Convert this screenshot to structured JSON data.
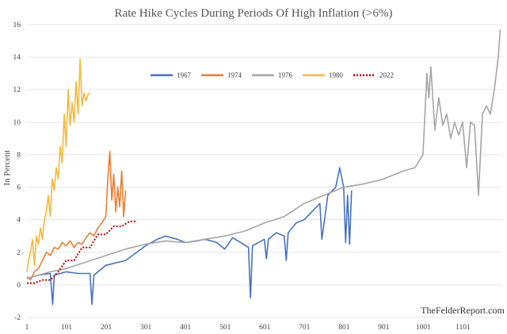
{
  "chart_data": {
    "type": "line",
    "title": "Rate Hike Cycles During Periods Of High Inflation (>6%)",
    "xlabel": "",
    "ylabel": "In Percent",
    "xlim": [
      1,
      1200
    ],
    "ylim": [
      -2,
      16
    ],
    "x_ticks": [
      1,
      101,
      201,
      301,
      401,
      501,
      601,
      701,
      801,
      901,
      1001,
      1101
    ],
    "y_ticks": [
      -2,
      0,
      2,
      4,
      6,
      8,
      10,
      12,
      14,
      16
    ],
    "grid": "horizontal",
    "legend_position": "upper-left-center",
    "watermark": "TheFelderReport.com",
    "series": [
      {
        "name": "1967",
        "color": "#4472c4",
        "style": "solid",
        "x": [
          1,
          30,
          60,
          66,
          70,
          100,
          130,
          160,
          165,
          170,
          200,
          250,
          300,
          330,
          350,
          380,
          400,
          430,
          450,
          480,
          500,
          520,
          540,
          560,
          565,
          570,
          600,
          605,
          610,
          630,
          650,
          655,
          660,
          680,
          700,
          720,
          740,
          745,
          760,
          780,
          790,
          800,
          805,
          810,
          815,
          820
        ],
        "values": [
          0.4,
          0.6,
          0.7,
          -1.2,
          0.6,
          0.8,
          0.7,
          0.7,
          -1.2,
          0.6,
          1.2,
          1.5,
          2.4,
          2.8,
          3.0,
          2.8,
          2.6,
          2.7,
          2.8,
          2.6,
          2.2,
          2.9,
          2.6,
          2.3,
          -0.8,
          2.4,
          2.8,
          1.6,
          2.8,
          3.2,
          3.0,
          1.5,
          3.2,
          3.8,
          4.0,
          4.5,
          5.0,
          2.8,
          5.5,
          6.0,
          7.2,
          6.0,
          2.6,
          5.5,
          2.5,
          5.8
        ]
      },
      {
        "name": "1974",
        "color": "#ed7d31",
        "style": "solid",
        "x": [
          1,
          10,
          20,
          30,
          40,
          50,
          60,
          70,
          80,
          90,
          100,
          110,
          120,
          130,
          140,
          150,
          160,
          170,
          180,
          190,
          200,
          205,
          210,
          215,
          220,
          225,
          230,
          235,
          240,
          245,
          250
        ],
        "values": [
          0.5,
          0.3,
          0.8,
          1.0,
          1.5,
          2.0,
          1.8,
          2.3,
          2.2,
          2.6,
          2.4,
          2.7,
          2.3,
          2.6,
          2.5,
          2.9,
          3.2,
          3.0,
          3.5,
          3.8,
          4.2,
          6.5,
          8.2,
          5.2,
          6.8,
          4.5,
          6.0,
          4.8,
          7.0,
          4.2,
          5.8
        ]
      },
      {
        "name": "1976",
        "color": "#a5a5a5",
        "style": "solid",
        "x": [
          1,
          30,
          60,
          100,
          150,
          200,
          250,
          300,
          350,
          400,
          450,
          500,
          550,
          600,
          650,
          700,
          750,
          800,
          850,
          900,
          950,
          980,
          1000,
          1010,
          1015,
          1020,
          1030,
          1040,
          1050,
          1060,
          1070,
          1080,
          1090,
          1100,
          1110,
          1120,
          1130,
          1140,
          1150,
          1160,
          1170,
          1180,
          1190,
          1195
        ],
        "values": [
          0.4,
          0.6,
          0.8,
          1.0,
          1.4,
          1.8,
          2.2,
          2.5,
          2.7,
          2.6,
          2.8,
          3.0,
          3.3,
          3.8,
          4.2,
          5.0,
          5.5,
          6.0,
          6.2,
          6.5,
          7.0,
          7.2,
          8.0,
          13.0,
          11.5,
          13.4,
          9.5,
          11.5,
          9.8,
          10.5,
          9.0,
          10.0,
          9.2,
          10.0,
          7.2,
          10.0,
          9.8,
          5.5,
          10.5,
          11.0,
          10.5,
          12.0,
          14.0,
          15.7
        ]
      },
      {
        "name": "1980",
        "color": "#f4b93c",
        "style": "solid",
        "x": [
          1,
          5,
          10,
          15,
          20,
          25,
          30,
          35,
          40,
          45,
          50,
          55,
          60,
          65,
          70,
          75,
          80,
          85,
          90,
          95,
          100,
          105,
          110,
          115,
          120,
          125,
          130,
          135,
          140,
          145,
          150,
          155,
          160
        ],
        "values": [
          0.8,
          1.5,
          2.0,
          2.8,
          1.2,
          3.0,
          2.5,
          3.5,
          2.8,
          4.0,
          4.5,
          5.5,
          4.2,
          6.5,
          5.8,
          7.2,
          6.5,
          8.5,
          7.5,
          10.5,
          8.5,
          12.0,
          9.8,
          11.2,
          10.0,
          12.5,
          10.5,
          13.9,
          11.0,
          11.8,
          11.3,
          11.7,
          11.8
        ]
      },
      {
        "name": "2022",
        "color": "#c00000",
        "style": "dotted",
        "x": [
          1,
          20,
          40,
          60,
          80,
          100,
          120,
          140,
          160,
          180,
          200,
          220,
          240,
          260,
          275
        ],
        "values": [
          0.1,
          0.1,
          0.3,
          0.3,
          0.8,
          1.5,
          1.5,
          2.3,
          2.3,
          3.1,
          3.1,
          3.6,
          3.6,
          3.9,
          3.9
        ]
      }
    ]
  }
}
